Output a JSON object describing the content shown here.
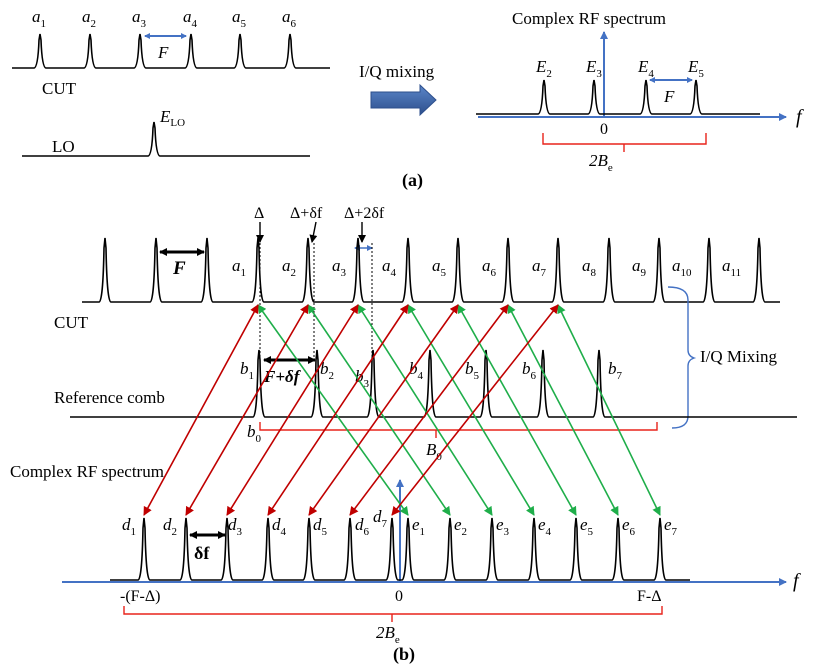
{
  "panel_a": {
    "cut_peaks": [
      {
        "sym": "a",
        "sub": "1"
      },
      {
        "sym": "a",
        "sub": "2"
      },
      {
        "sym": "a",
        "sub": "3"
      },
      {
        "sym": "a",
        "sub": "4"
      },
      {
        "sym": "a",
        "sub": "5"
      },
      {
        "sym": "a",
        "sub": "6"
      }
    ],
    "spacing_label": "F",
    "cut_label": "CUT",
    "lo_label": "LO",
    "lo_peak": {
      "sym": "E",
      "sub": "LO"
    },
    "mixing_label": "I/Q mixing",
    "spectrum_title": "Complex RF spectrum",
    "spectrum_peaks": [
      {
        "sym": "E",
        "sub": "2"
      },
      {
        "sym": "E",
        "sub": "3"
      },
      {
        "sym": "E",
        "sub": "4"
      },
      {
        "sym": "E",
        "sub": "5"
      }
    ],
    "spectrum_spacing_label": "F",
    "zero_label": "0",
    "freq_label": "f",
    "bandwidth_label": {
      "main": "2B",
      "sub": "e"
    },
    "caption": "(a)"
  },
  "panel_b": {
    "delta_labels": {
      "d0": "Δ",
      "d1": "Δ+δf",
      "d2": "Δ+2δf"
    },
    "cut_peaks": [
      {
        "sym": "a",
        "sub": "1"
      },
      {
        "sym": "a",
        "sub": "2"
      },
      {
        "sym": "a",
        "sub": "3"
      },
      {
        "sym": "a",
        "sub": "4"
      },
      {
        "sym": "a",
        "sub": "5"
      },
      {
        "sym": "a",
        "sub": "6"
      },
      {
        "sym": "a",
        "sub": "7"
      },
      {
        "sym": "a",
        "sub": "8"
      },
      {
        "sym": "a",
        "sub": "9"
      },
      {
        "sym": "a",
        "sub": "10"
      },
      {
        "sym": "a",
        "sub": "11"
      }
    ],
    "spacing_label": "F",
    "cut_label": "CUT",
    "mixing_label": "I/Q Mixing",
    "ref_label": "Reference comb",
    "ref_peaks": [
      {
        "sym": "b",
        "sub": "1"
      },
      {
        "sym": "b",
        "sub": "2"
      },
      {
        "sym": "b",
        "sub": "3"
      },
      {
        "sym": "b",
        "sub": "4"
      },
      {
        "sym": "b",
        "sub": "5"
      },
      {
        "sym": "b",
        "sub": "6"
      },
      {
        "sym": "b",
        "sub": "7"
      }
    ],
    "ref_spacing_label": "F+δf",
    "b0_label": {
      "main": "b",
      "sub": "0"
    },
    "B0_label": {
      "main": "B",
      "sub": "0"
    },
    "spectrum_title": "Complex  RF spectrum",
    "d_peaks": [
      {
        "sym": "d",
        "sub": "1"
      },
      {
        "sym": "d",
        "sub": "2"
      },
      {
        "sym": "d",
        "sub": "3"
      },
      {
        "sym": "d",
        "sub": "4"
      },
      {
        "sym": "d",
        "sub": "5"
      },
      {
        "sym": "d",
        "sub": "6"
      },
      {
        "sym": "d",
        "sub": "7"
      }
    ],
    "e_peaks": [
      {
        "sym": "e",
        "sub": "1"
      },
      {
        "sym": "e",
        "sub": "2"
      },
      {
        "sym": "e",
        "sub": "3"
      },
      {
        "sym": "e",
        "sub": "4"
      },
      {
        "sym": "e",
        "sub": "5"
      },
      {
        "sym": "e",
        "sub": "6"
      },
      {
        "sym": "e",
        "sub": "7"
      }
    ],
    "small_spacing_label": "δf",
    "left_edge_label": "-(F-Δ)",
    "zero_label": "0",
    "right_edge_label": "F-Δ",
    "freq_label": "f",
    "bandwidth_label": {
      "main": "2B",
      "sub": "e"
    },
    "caption": "(b)"
  },
  "colors": {
    "comb": "#000000",
    "axis": "#4472c4",
    "bracket": "#e8231b",
    "red_arrow": "#c00000",
    "green_arrow": "#1fae4a",
    "mix_arrow": "#3a63a8"
  }
}
